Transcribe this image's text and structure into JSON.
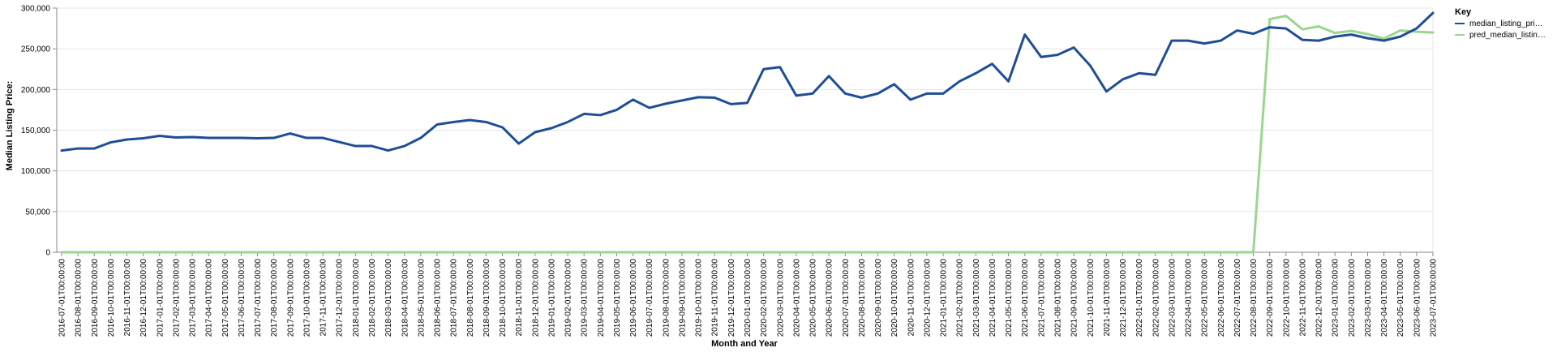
{
  "chart_data": {
    "type": "line",
    "xlabel": "Month and Year",
    "ylabel": "Median Listing Price:",
    "ylim": [
      0,
      300000
    ],
    "yticks": [
      "0",
      "50,000",
      "100,000",
      "150,000",
      "200,000",
      "250,000",
      "300,000"
    ],
    "grid": true,
    "legend": {
      "title": "Key",
      "position": "right",
      "entries": [
        "median_listing_pri…",
        "pred_median_listin…"
      ]
    },
    "x": [
      "2016-07-01T00:00:00",
      "2016-08-01T00:00:00",
      "2016-09-01T00:00:00",
      "2016-10-01T00:00:00",
      "2016-11-01T00:00:00",
      "2016-12-01T00:00:00",
      "2017-01-01T00:00:00",
      "2017-02-01T00:00:00",
      "2017-03-01T00:00:00",
      "2017-04-01T00:00:00",
      "2017-05-01T00:00:00",
      "2017-06-01T00:00:00",
      "2017-07-01T00:00:00",
      "2017-08-01T00:00:00",
      "2017-09-01T00:00:00",
      "2017-10-01T00:00:00",
      "2017-11-01T00:00:00",
      "2017-12-01T00:00:00",
      "2018-01-01T00:00:00",
      "2018-02-01T00:00:00",
      "2018-03-01T00:00:00",
      "2018-04-01T00:00:00",
      "2018-05-01T00:00:00",
      "2018-06-01T00:00:00",
      "2018-07-01T00:00:00",
      "2018-08-01T00:00:00",
      "2018-09-01T00:00:00",
      "2018-10-01T00:00:00",
      "2018-11-01T00:00:00",
      "2018-12-01T00:00:00",
      "2019-01-01T00:00:00",
      "2019-02-01T00:00:00",
      "2019-03-01T00:00:00",
      "2019-04-01T00:00:00",
      "2019-05-01T00:00:00",
      "2019-06-01T00:00:00",
      "2019-07-01T00:00:00",
      "2019-08-01T00:00:00",
      "2019-09-01T00:00:00",
      "2019-10-01T00:00:00",
      "2019-11-01T00:00:00",
      "2019-12-01T00:00:00",
      "2020-01-01T00:00:00",
      "2020-02-01T00:00:00",
      "2020-03-01T00:00:00",
      "2020-04-01T00:00:00",
      "2020-05-01T00:00:00",
      "2020-06-01T00:00:00",
      "2020-07-01T00:00:00",
      "2020-08-01T00:00:00",
      "2020-09-01T00:00:00",
      "2020-10-01T00:00:00",
      "2020-11-01T00:00:00",
      "2020-12-01T00:00:00",
      "2021-01-01T00:00:00",
      "2021-02-01T00:00:00",
      "2021-03-01T00:00:00",
      "2021-04-01T00:00:00",
      "2021-05-01T00:00:00",
      "2021-06-01T00:00:00",
      "2021-07-01T00:00:00",
      "2021-08-01T00:00:00",
      "2021-09-01T00:00:00",
      "2021-10-01T00:00:00",
      "2021-11-01T00:00:00",
      "2021-12-01T00:00:00",
      "2022-01-01T00:00:00",
      "2022-02-01T00:00:00",
      "2022-03-01T00:00:00",
      "2022-04-01T00:00:00",
      "2022-05-01T00:00:00",
      "2022-06-01T00:00:00",
      "2022-07-01T00:00:00",
      "2022-08-01T00:00:00",
      "2022-09-01T00:00:00",
      "2022-10-01T00:00:00",
      "2022-11-01T00:00:00",
      "2022-12-01T00:00:00",
      "2023-01-01T00:00:00",
      "2023-02-01T00:00:00",
      "2023-03-01T00:00:00",
      "2023-04-01T00:00:00",
      "2023-05-01T00:00:00",
      "2023-06-01T00:00:00",
      "2023-07-01T00:00:00"
    ],
    "series": [
      {
        "name": "median_listing_pri…",
        "color": "#1f4e96",
        "values": [
          125000,
          127500,
          127500,
          135000,
          138500,
          140000,
          143000,
          141000,
          141500,
          140500,
          140500,
          140500,
          140000,
          140500,
          146000,
          140500,
          140500,
          135500,
          130500,
          130500,
          125000,
          130500,
          140500,
          157000,
          160000,
          162500,
          160000,
          153500,
          133500,
          147500,
          152500,
          160000,
          170000,
          168500,
          175000,
          187500,
          177500,
          182500,
          186500,
          190500,
          190000,
          182000,
          183500,
          225000,
          227500,
          192500,
          195000,
          216500,
          195000,
          190000,
          195000,
          206500,
          187500,
          195000,
          195000,
          210000,
          220000,
          231500,
          210000,
          267500,
          240000,
          242500,
          251500,
          229500,
          197500,
          212500,
          220000,
          218000,
          260000,
          260000,
          256500,
          260000,
          272500,
          268500,
          276500,
          275000,
          261000,
          260000,
          265000,
          267500,
          263000,
          260000,
          265000,
          275000,
          294000
        ]
      },
      {
        "name": "pred_median_listin…",
        "color": "#9bd68f",
        "values": [
          0,
          0,
          0,
          0,
          0,
          0,
          0,
          0,
          0,
          0,
          0,
          0,
          0,
          0,
          0,
          0,
          0,
          0,
          0,
          0,
          0,
          0,
          0,
          0,
          0,
          0,
          0,
          0,
          0,
          0,
          0,
          0,
          0,
          0,
          0,
          0,
          0,
          0,
          0,
          0,
          0,
          0,
          0,
          0,
          0,
          0,
          0,
          0,
          0,
          0,
          0,
          0,
          0,
          0,
          0,
          0,
          0,
          0,
          0,
          0,
          0,
          0,
          0,
          0,
          0,
          0,
          0,
          0,
          0,
          0,
          0,
          0,
          0,
          0,
          286500,
          290500,
          274000,
          277500,
          269500,
          272000,
          268000,
          262500,
          272500,
          271000,
          270000
        ]
      }
    ]
  }
}
